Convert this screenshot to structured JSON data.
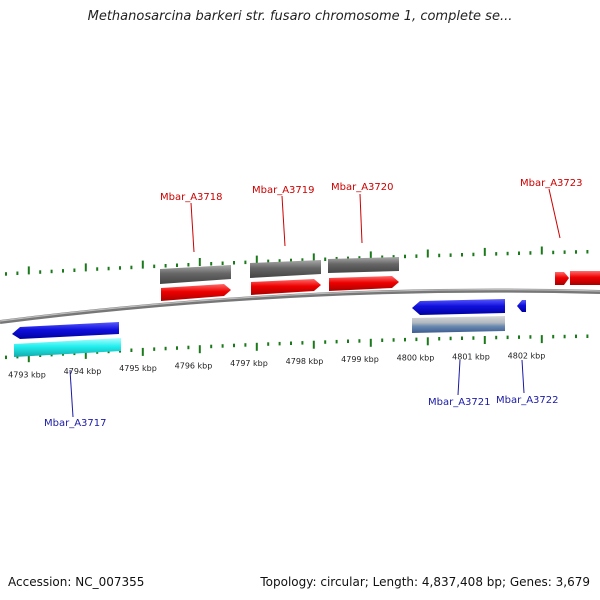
{
  "title": "Methanosarcina barkeri str. fusaro chromosome 1, complete se...",
  "footer": {
    "accession": "Accession: NC_007355",
    "summary": "Topology: circular; Length: 4,837,408 bp; Genes: 3,679"
  },
  "colors": {
    "forward_cds": "#ee0000",
    "forward_gene": "#666666",
    "reverse_cds": "#1010dd",
    "reverse_gene": "#22dddd",
    "tick": "#1a7a1a",
    "backbone": "#888888"
  },
  "ticks": [
    "4793 kbp",
    "4794 kbp",
    "4795 kbp",
    "4796 kbp",
    "4797 kbp",
    "4798 kbp",
    "4799 kbp",
    "4800 kbp",
    "4801 kbp",
    "4802 kbp"
  ],
  "genes": [
    {
      "label": "Mbar_A3717",
      "strand": "reverse"
    },
    {
      "label": "Mbar_A3718",
      "strand": "forward"
    },
    {
      "label": "Mbar_A3719",
      "strand": "forward"
    },
    {
      "label": "Mbar_A3720",
      "strand": "forward"
    },
    {
      "label": "Mbar_A3721",
      "strand": "reverse"
    },
    {
      "label": "Mbar_A3722",
      "strand": "reverse"
    },
    {
      "label": "Mbar_A3723",
      "strand": "forward"
    }
  ]
}
